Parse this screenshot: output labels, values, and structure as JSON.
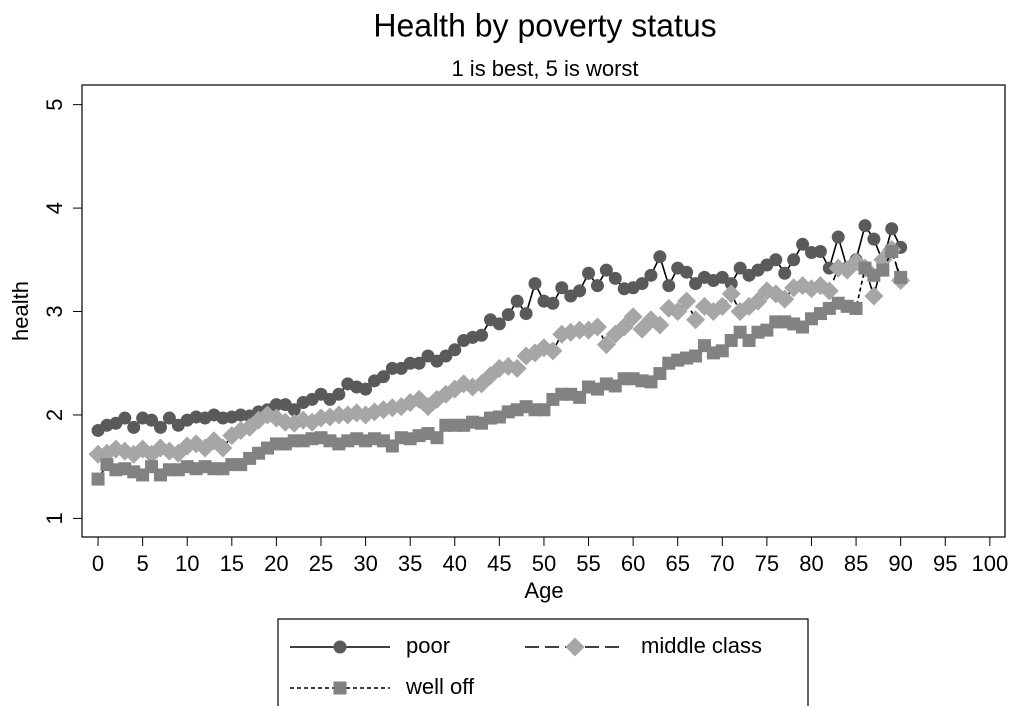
{
  "chart_data": {
    "type": "line",
    "title": "Health by poverty status",
    "subtitle": "1 is best, 5 is worst",
    "x_label": "Age",
    "y_label": "health",
    "x": [
      0,
      1,
      2,
      3,
      4,
      5,
      6,
      7,
      8,
      9,
      10,
      11,
      12,
      13,
      14,
      15,
      16,
      17,
      18,
      19,
      20,
      21,
      22,
      23,
      24,
      25,
      26,
      27,
      28,
      29,
      30,
      31,
      32,
      33,
      34,
      35,
      36,
      37,
      38,
      39,
      40,
      41,
      42,
      43,
      44,
      45,
      46,
      47,
      48,
      49,
      50,
      51,
      52,
      53,
      54,
      55,
      56,
      57,
      58,
      59,
      60,
      61,
      62,
      63,
      64,
      65,
      66,
      67,
      68,
      69,
      70,
      71,
      72,
      73,
      74,
      75,
      76,
      77,
      78,
      79,
      80,
      81,
      82,
      83,
      84,
      85,
      86,
      87,
      88,
      89,
      90
    ],
    "series": [
      {
        "name": "poor",
        "color": "#5a5a5a",
        "marker": "circle",
        "line_style": "solid",
        "values": [
          1.85,
          1.9,
          1.92,
          1.97,
          1.88,
          1.97,
          1.95,
          1.88,
          1.97,
          1.9,
          1.95,
          1.98,
          1.97,
          2.0,
          1.97,
          1.98,
          2.0,
          1.99,
          2.03,
          2.05,
          2.1,
          2.1,
          2.05,
          2.12,
          2.15,
          2.2,
          2.15,
          2.2,
          2.3,
          2.27,
          2.25,
          2.33,
          2.37,
          2.45,
          2.45,
          2.5,
          2.5,
          2.57,
          2.52,
          2.57,
          2.63,
          2.72,
          2.75,
          2.77,
          2.92,
          2.88,
          2.97,
          3.1,
          2.98,
          3.27,
          3.1,
          3.08,
          3.23,
          3.15,
          3.2,
          3.37,
          3.25,
          3.4,
          3.32,
          3.22,
          3.23,
          3.27,
          3.35,
          3.53,
          3.25,
          3.42,
          3.38,
          3.27,
          3.33,
          3.3,
          3.33,
          3.27,
          3.42,
          3.35,
          3.4,
          3.45,
          3.5,
          3.37,
          3.5,
          3.65,
          3.57,
          3.58,
          3.42,
          3.72,
          3.42,
          3.5,
          3.83,
          3.7,
          3.48,
          3.8,
          3.62
        ]
      },
      {
        "name": "middle class",
        "color": "#a6a6a6",
        "marker": "diamond",
        "line_style": "dashed",
        "values": [
          1.62,
          1.63,
          1.67,
          1.65,
          1.62,
          1.67,
          1.62,
          1.68,
          1.65,
          1.63,
          1.7,
          1.72,
          1.68,
          1.75,
          1.68,
          1.8,
          1.85,
          1.88,
          1.95,
          2.0,
          1.97,
          1.93,
          1.92,
          1.95,
          1.93,
          1.97,
          1.98,
          2.0,
          2.0,
          2.02,
          2.0,
          2.03,
          2.05,
          2.07,
          2.08,
          2.12,
          2.15,
          2.08,
          2.15,
          2.2,
          2.25,
          2.3,
          2.27,
          2.3,
          2.38,
          2.45,
          2.47,
          2.45,
          2.57,
          2.6,
          2.65,
          2.62,
          2.78,
          2.8,
          2.82,
          2.82,
          2.85,
          2.68,
          2.78,
          2.85,
          2.95,
          2.83,
          2.92,
          2.87,
          3.03,
          3.0,
          3.1,
          2.92,
          3.05,
          3.0,
          3.05,
          3.17,
          3.0,
          3.05,
          3.1,
          3.2,
          3.17,
          3.12,
          3.23,
          3.25,
          3.22,
          3.25,
          3.2,
          3.42,
          3.4,
          3.48,
          3.42,
          3.15,
          3.5,
          3.6,
          3.3
        ]
      },
      {
        "name": "well off",
        "color": "#828282",
        "marker": "square",
        "line_style": "dotted",
        "values": [
          1.38,
          1.52,
          1.47,
          1.48,
          1.45,
          1.42,
          1.5,
          1.42,
          1.47,
          1.47,
          1.5,
          1.48,
          1.5,
          1.48,
          1.48,
          1.52,
          1.52,
          1.58,
          1.63,
          1.68,
          1.72,
          1.72,
          1.75,
          1.75,
          1.77,
          1.78,
          1.75,
          1.72,
          1.75,
          1.77,
          1.75,
          1.77,
          1.75,
          1.7,
          1.78,
          1.77,
          1.8,
          1.82,
          1.78,
          1.9,
          1.9,
          1.9,
          1.93,
          1.92,
          1.97,
          1.98,
          2.03,
          2.05,
          2.08,
          2.05,
          2.05,
          2.15,
          2.2,
          2.2,
          2.17,
          2.27,
          2.25,
          2.3,
          2.28,
          2.35,
          2.35,
          2.33,
          2.32,
          2.4,
          2.5,
          2.53,
          2.55,
          2.57,
          2.67,
          2.6,
          2.62,
          2.72,
          2.8,
          2.72,
          2.8,
          2.82,
          2.9,
          2.9,
          2.88,
          2.85,
          2.93,
          2.98,
          3.03,
          3.08,
          3.05,
          3.03,
          3.42,
          3.35,
          3.4,
          3.58,
          3.33
        ]
      }
    ],
    "xlim": [
      -1.8,
      101.7
    ],
    "xticks": [
      0,
      5,
      10,
      15,
      20,
      25,
      30,
      35,
      40,
      45,
      50,
      55,
      60,
      65,
      70,
      75,
      80,
      85,
      90,
      95,
      100
    ],
    "ylim": [
      0.82,
      5.19
    ],
    "yticks": [
      1,
      2,
      3,
      4,
      5
    ],
    "grid": false,
    "legend": "bottom"
  }
}
